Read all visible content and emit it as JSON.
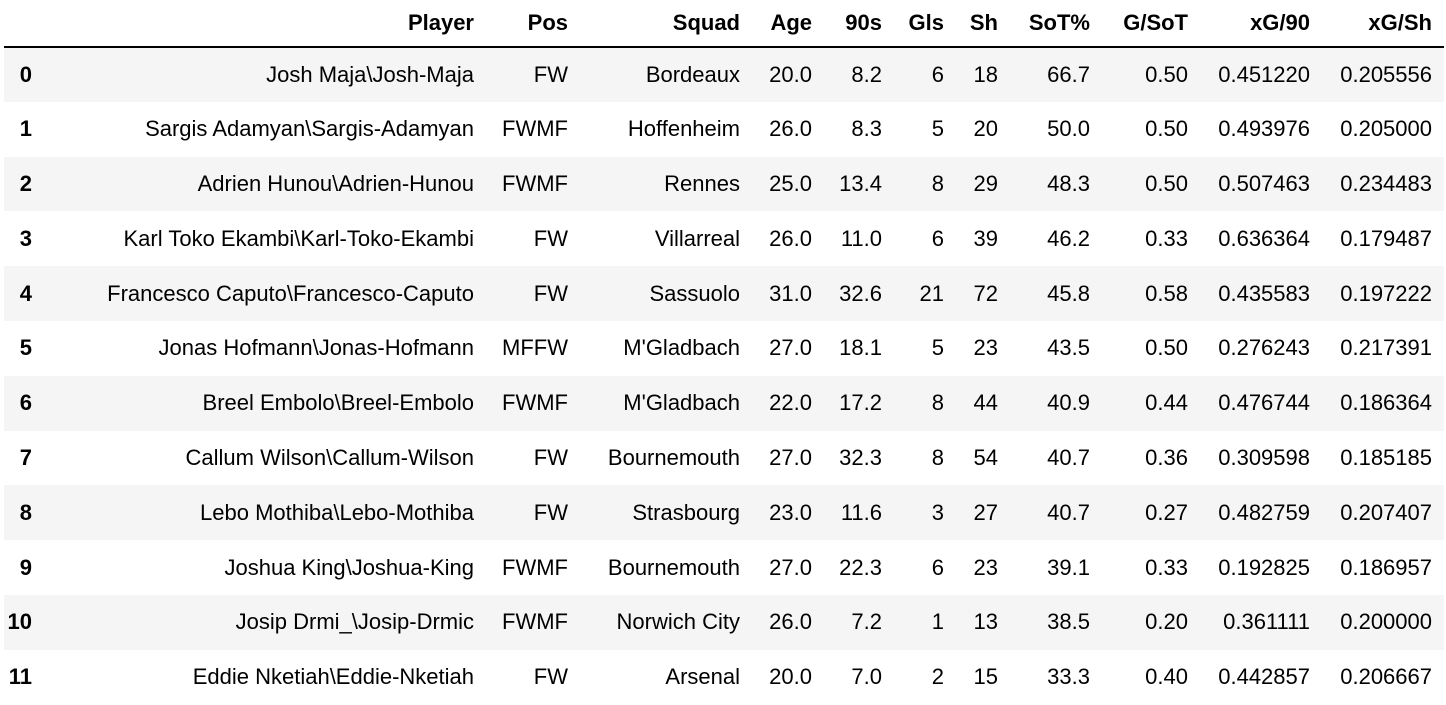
{
  "table": {
    "index_header": "",
    "columns": [
      "Player",
      "Pos",
      "Squad",
      "Age",
      "90s",
      "Gls",
      "Sh",
      "SoT%",
      "G/SoT",
      "xG/90",
      "xG/Sh"
    ],
    "rows": [
      {
        "index": "0",
        "cells": [
          "Josh Maja\\Josh-Maja",
          "FW",
          "Bordeaux",
          "20.0",
          "8.2",
          "6",
          "18",
          "66.7",
          "0.50",
          "0.451220",
          "0.205556"
        ]
      },
      {
        "index": "1",
        "cells": [
          "Sargis Adamyan\\Sargis-Adamyan",
          "FWMF",
          "Hoffenheim",
          "26.0",
          "8.3",
          "5",
          "20",
          "50.0",
          "0.50",
          "0.493976",
          "0.205000"
        ]
      },
      {
        "index": "2",
        "cells": [
          "Adrien Hunou\\Adrien-Hunou",
          "FWMF",
          "Rennes",
          "25.0",
          "13.4",
          "8",
          "29",
          "48.3",
          "0.50",
          "0.507463",
          "0.234483"
        ]
      },
      {
        "index": "3",
        "cells": [
          "Karl Toko Ekambi\\Karl-Toko-Ekambi",
          "FW",
          "Villarreal",
          "26.0",
          "11.0",
          "6",
          "39",
          "46.2",
          "0.33",
          "0.636364",
          "0.179487"
        ]
      },
      {
        "index": "4",
        "cells": [
          "Francesco Caputo\\Francesco-Caputo",
          "FW",
          "Sassuolo",
          "31.0",
          "32.6",
          "21",
          "72",
          "45.8",
          "0.58",
          "0.435583",
          "0.197222"
        ]
      },
      {
        "index": "5",
        "cells": [
          "Jonas Hofmann\\Jonas-Hofmann",
          "MFFW",
          "M'Gladbach",
          "27.0",
          "18.1",
          "5",
          "23",
          "43.5",
          "0.50",
          "0.276243",
          "0.217391"
        ]
      },
      {
        "index": "6",
        "cells": [
          "Breel Embolo\\Breel-Embolo",
          "FWMF",
          "M'Gladbach",
          "22.0",
          "17.2",
          "8",
          "44",
          "40.9",
          "0.44",
          "0.476744",
          "0.186364"
        ]
      },
      {
        "index": "7",
        "cells": [
          "Callum Wilson\\Callum-Wilson",
          "FW",
          "Bournemouth",
          "27.0",
          "32.3",
          "8",
          "54",
          "40.7",
          "0.36",
          "0.309598",
          "0.185185"
        ]
      },
      {
        "index": "8",
        "cells": [
          "Lebo Mothiba\\Lebo-Mothiba",
          "FW",
          "Strasbourg",
          "23.0",
          "11.6",
          "3",
          "27",
          "40.7",
          "0.27",
          "0.482759",
          "0.207407"
        ]
      },
      {
        "index": "9",
        "cells": [
          "Joshua King\\Joshua-King",
          "FWMF",
          "Bournemouth",
          "27.0",
          "22.3",
          "6",
          "23",
          "39.1",
          "0.33",
          "0.192825",
          "0.186957"
        ]
      },
      {
        "index": "10",
        "cells": [
          "Josip Drmi_\\Josip-Drmic",
          "FWMF",
          "Norwich City",
          "26.0",
          "7.2",
          "1",
          "13",
          "38.5",
          "0.20",
          "0.361111",
          "0.200000"
        ]
      },
      {
        "index": "11",
        "cells": [
          "Eddie Nketiah\\Eddie-Nketiah",
          "FW",
          "Arsenal",
          "20.0",
          "7.0",
          "2",
          "15",
          "33.3",
          "0.40",
          "0.442857",
          "0.206667"
        ]
      }
    ]
  }
}
